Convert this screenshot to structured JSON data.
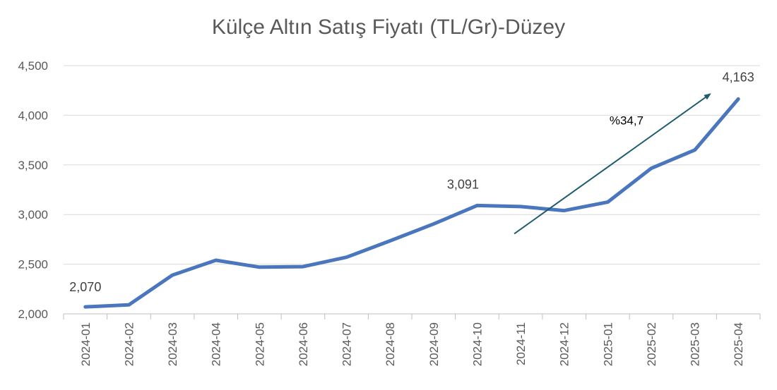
{
  "chart_data": {
    "type": "line",
    "title": "Külçe Altın Satış Fiyatı (TL/Gr)-Düzey",
    "xlabel": "",
    "ylabel": "",
    "ylim": [
      2000,
      4500
    ],
    "yticks": [
      2000,
      2500,
      3000,
      3500,
      4000,
      4500
    ],
    "ytick_labels": [
      "2,000",
      "2,500",
      "3,000",
      "3,500",
      "4,000",
      "4,500"
    ],
    "categories": [
      "2024-01",
      "2024-02",
      "2024-03",
      "2024-04",
      "2024-05",
      "2024-06",
      "2024-07",
      "2024-08",
      "2024-09",
      "2024-10",
      "2024-11",
      "2024-12",
      "2025-01",
      "2025-02",
      "2025-03",
      "2025-04"
    ],
    "series": [
      {
        "values": [
          2070,
          2090,
          2390,
          2540,
          2470,
          2475,
          2570,
          2735,
          2905,
          3091,
          3080,
          3040,
          3125,
          3465,
          3650,
          4163
        ],
        "color": "#4a76bd"
      }
    ],
    "data_labels": [
      {
        "index": 0,
        "text": "2,070"
      },
      {
        "index": 9,
        "text": "3,091"
      },
      {
        "index": 15,
        "text": "4,163"
      }
    ],
    "annotation": {
      "text": "%34,7",
      "arrow_color": "#1f5b6e"
    },
    "grid": true,
    "legend": "none"
  }
}
